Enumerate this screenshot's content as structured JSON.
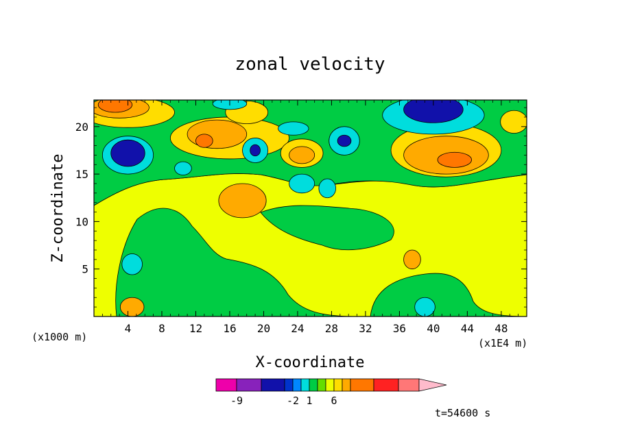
{
  "chart_data": {
    "type": "heatmap",
    "title": "zonal velocity",
    "xlabel": "X-coordinate",
    "ylabel": "Z-coordinate",
    "x_unit_label": "(x1E4 m)",
    "y_unit_label": "(x1000 m)",
    "xlim": [
      0,
      51
    ],
    "ylim": [
      0,
      22.8
    ],
    "x_ticks": [
      4,
      8,
      12,
      16,
      20,
      24,
      28,
      32,
      36,
      40,
      44,
      48
    ],
    "x_tick_labels": [
      "4",
      "8",
      "12",
      "16",
      "20",
      "24",
      "28",
      "32",
      "36",
      "40",
      "44",
      "48"
    ],
    "y_ticks": [
      5,
      10,
      15,
      20
    ],
    "y_tick_labels": [
      "5",
      "10",
      "15",
      "20"
    ],
    "time_label": "t=54600 s",
    "colorbar": {
      "colors": [
        "#ee00aa",
        "#8822bb",
        "#1111aa",
        "#0033cc",
        "#0088ff",
        "#00dddd",
        "#00cc44",
        "#66dd00",
        "#eeff00",
        "#ffdd00",
        "#ffaa00",
        "#ff7700",
        "#ff2222",
        "#ff7777",
        "#ffbbcc"
      ],
      "tick_labels": [
        "-9",
        "-2",
        "1",
        "6"
      ],
      "tick_after_box": [
        1,
        4,
        6,
        9
      ]
    },
    "regions": [
      {
        "color": "#ffaa00",
        "cx": 17.5,
        "cy": 12.2,
        "rx": 2.8,
        "ry": 1.8
      },
      {
        "color": "#00dddd",
        "cx": 4.5,
        "cy": 5.5,
        "rx": 1.2,
        "ry": 1.1
      },
      {
        "color": "#ffaa00",
        "cx": 4.5,
        "cy": 1.0,
        "rx": 1.4,
        "ry": 1.0
      },
      {
        "color": "#00dddd",
        "cx": 39.0,
        "cy": 1.0,
        "rx": 1.2,
        "ry": 1.0
      },
      {
        "color": "#ffaa00",
        "cx": 37.5,
        "cy": 6.0,
        "rx": 1.0,
        "ry": 1.0
      },
      {
        "color": "#00dddd",
        "cx": 24.5,
        "cy": 14.0,
        "rx": 1.5,
        "ry": 1.0
      },
      {
        "color": "#00dddd",
        "cx": 27.5,
        "cy": 13.5,
        "rx": 1.0,
        "ry": 1.0
      },
      {
        "color": "#00dddd",
        "cx": 10.5,
        "cy": 15.6,
        "rx": 1.0,
        "ry": 0.7
      },
      {
        "color": "#00dddd",
        "cx": 4.0,
        "cy": 17.0,
        "rx": 3.0,
        "ry": 2.0
      },
      {
        "color": "#1111aa",
        "cx": 4.0,
        "cy": 17.2,
        "rx": 2.0,
        "ry": 1.4
      },
      {
        "color": "#ffdd00",
        "cx": 16.0,
        "cy": 18.8,
        "rx": 7.0,
        "ry": 2.2
      },
      {
        "color": "#ffaa00",
        "cx": 14.5,
        "cy": 19.2,
        "rx": 3.5,
        "ry": 1.5
      },
      {
        "color": "#ff7700",
        "cx": 13.0,
        "cy": 18.5,
        "rx": 1.0,
        "ry": 0.7
      },
      {
        "color": "#00dddd",
        "cx": 19.0,
        "cy": 17.5,
        "rx": 1.5,
        "ry": 1.3
      },
      {
        "color": "#1111aa",
        "cx": 19.0,
        "cy": 17.5,
        "rx": 0.6,
        "ry": 0.6
      },
      {
        "color": "#ffdd00",
        "cx": 24.5,
        "cy": 17.2,
        "rx": 2.5,
        "ry": 1.5
      },
      {
        "color": "#ffaa00",
        "cx": 24.5,
        "cy": 17.0,
        "rx": 1.5,
        "ry": 0.9
      },
      {
        "color": "#00dddd",
        "cx": 29.5,
        "cy": 18.5,
        "rx": 1.8,
        "ry": 1.5
      },
      {
        "color": "#1111aa",
        "cx": 29.5,
        "cy": 18.5,
        "rx": 0.8,
        "ry": 0.6
      },
      {
        "color": "#00dddd",
        "cx": 23.5,
        "cy": 19.8,
        "rx": 1.8,
        "ry": 0.7
      },
      {
        "color": "#ffdd00",
        "cx": 41.5,
        "cy": 17.5,
        "rx": 6.5,
        "ry": 2.8
      },
      {
        "color": "#ffaa00",
        "cx": 41.5,
        "cy": 17.0,
        "rx": 5.0,
        "ry": 2.0
      },
      {
        "color": "#ff7700",
        "cx": 42.5,
        "cy": 16.5,
        "rx": 2.0,
        "ry": 0.8
      },
      {
        "color": "#00dddd",
        "cx": 40.0,
        "cy": 21.2,
        "rx": 6.0,
        "ry": 2.0
      },
      {
        "color": "#1111aa",
        "cx": 40.0,
        "cy": 21.8,
        "rx": 3.5,
        "ry": 1.4
      },
      {
        "color": "#ffdd00",
        "cx": 4.0,
        "cy": 21.5,
        "rx": 5.5,
        "ry": 1.6
      },
      {
        "color": "#ffaa00",
        "cx": 3.0,
        "cy": 22.0,
        "rx": 3.5,
        "ry": 1.1
      },
      {
        "color": "#ff7700",
        "cx": 2.5,
        "cy": 22.3,
        "rx": 2.0,
        "ry": 0.8
      },
      {
        "color": "#ffdd00",
        "cx": 18.0,
        "cy": 21.5,
        "rx": 2.5,
        "ry": 1.2
      },
      {
        "color": "#ffdd00",
        "cx": 49.5,
        "cy": 20.5,
        "rx": 1.6,
        "ry": 1.2
      },
      {
        "color": "#00dddd",
        "cx": 16.0,
        "cy": 22.4,
        "rx": 2.0,
        "ry": 0.6
      }
    ]
  }
}
